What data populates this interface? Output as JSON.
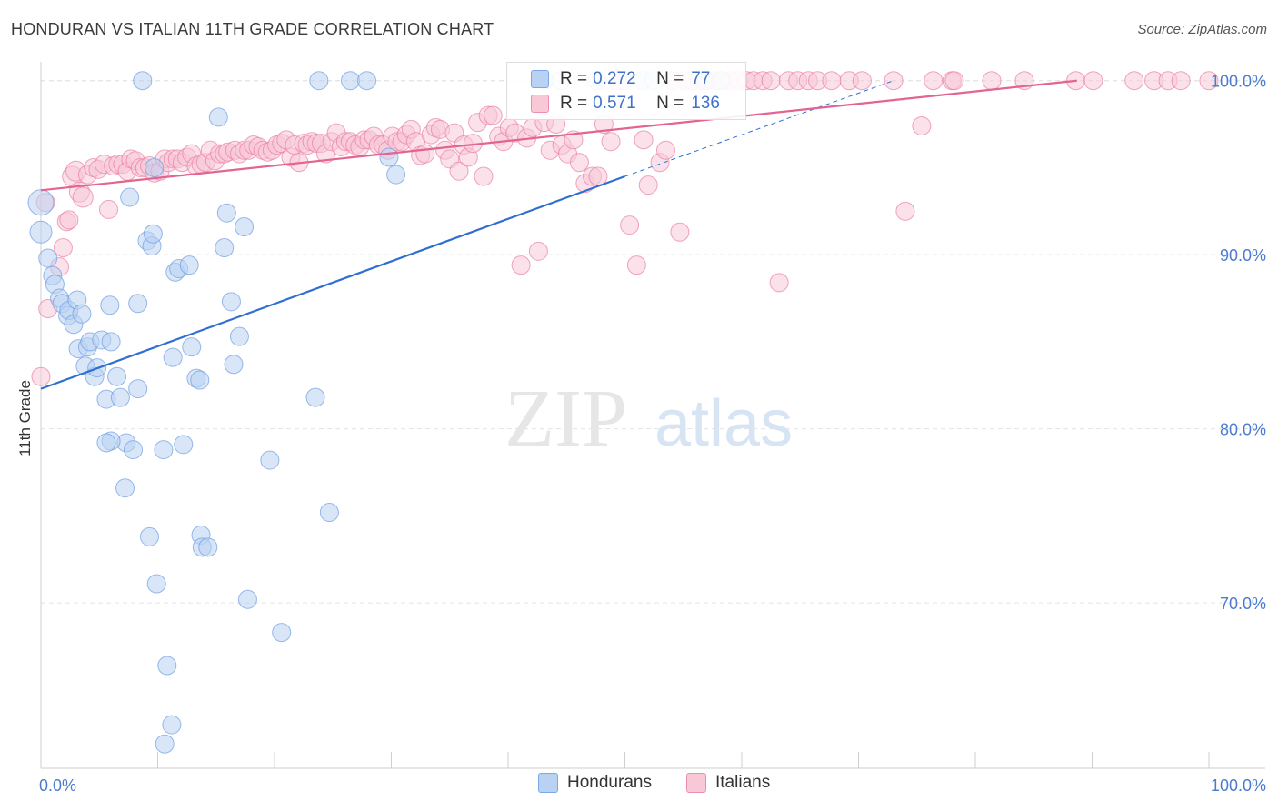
{
  "title": "HONDURAN VS ITALIAN 11TH GRADE CORRELATION CHART",
  "source": "Source: ZipAtlas.com",
  "watermark": {
    "zip": "ZIP",
    "atlas": "atlas"
  },
  "legend": {
    "rows": [
      {
        "r_label": "R = ",
        "r_value": "0.272",
        "n_label": "N = ",
        "n_value": "77",
        "color": "#9ec0f0"
      },
      {
        "r_label": "R = ",
        "r_value": "0.571",
        "n_label": "N = ",
        "n_value": "136",
        "color": "#f7b6ca"
      }
    ]
  },
  "bottom_legend": [
    {
      "label": "Hondurans",
      "color": "#9ec0f0"
    },
    {
      "label": "Italians",
      "color": "#f7b6ca"
    }
  ],
  "chart_data": {
    "type": "scatter",
    "title": "HONDURAN VS ITALIAN 11TH GRADE CORRELATION CHART",
    "xlabel": "",
    "ylabel": "11th Grade",
    "xlim": [
      0,
      100
    ],
    "ylim": [
      60.5,
      101.5
    ],
    "x_tick_labels": [
      "0.0%",
      "100.0%"
    ],
    "y_ticks": [
      70,
      80,
      90,
      100
    ],
    "y_tick_labels": [
      "70.0%",
      "80.0%",
      "90.0%",
      "100.0%"
    ],
    "grid": true,
    "legend_position": "top-center",
    "series": [
      {
        "name": "Hondurans",
        "color": "#6d9de3",
        "fill": "#b9d1f3",
        "trend": {
          "x1": 0,
          "y1": 82.3,
          "x2": 50,
          "y2": 94.5,
          "dash_to_x": 73,
          "dash_to_y": 100
        },
        "points": [
          [
            0,
            93
          ],
          [
            0,
            91.3
          ],
          [
            0.6,
            89.8
          ],
          [
            1,
            88.8
          ],
          [
            1.2,
            88.3
          ],
          [
            1.6,
            87.5
          ],
          [
            1.8,
            87.2
          ],
          [
            2.3,
            86.5
          ],
          [
            2.4,
            86.8
          ],
          [
            2.8,
            86
          ],
          [
            3.1,
            87.4
          ],
          [
            3.2,
            84.6
          ],
          [
            3.5,
            86.6
          ],
          [
            3.8,
            83.6
          ],
          [
            4,
            84.7
          ],
          [
            4.2,
            85
          ],
          [
            4.6,
            83
          ],
          [
            4.8,
            83.5
          ],
          [
            5.2,
            85.1
          ],
          [
            5.6,
            81.7
          ],
          [
            5.9,
            87.1
          ],
          [
            6,
            85
          ],
          [
            6.5,
            83
          ],
          [
            6.8,
            81.8
          ],
          [
            7.2,
            76.6
          ],
          [
            7.3,
            79.2
          ],
          [
            7.6,
            93.3
          ],
          [
            7.9,
            78.8
          ],
          [
            8.3,
            87.2
          ],
          [
            8.3,
            82.3
          ],
          [
            8.7,
            100
          ],
          [
            9.1,
            90.8
          ],
          [
            9.3,
            73.8
          ],
          [
            9.5,
            90.5
          ],
          [
            9.6,
            91.2
          ],
          [
            9.7,
            95
          ],
          [
            9.9,
            71.1
          ],
          [
            10.5,
            78.8
          ],
          [
            10.8,
            66.4
          ],
          [
            11.2,
            63
          ],
          [
            11.3,
            84.1
          ],
          [
            11.5,
            89
          ],
          [
            11.8,
            89.2
          ],
          [
            12.2,
            79.1
          ],
          [
            12.7,
            89.4
          ],
          [
            12.9,
            84.7
          ],
          [
            13.3,
            82.9
          ],
          [
            13.6,
            82.8
          ],
          [
            13.7,
            73.9
          ],
          [
            13.8,
            73.2
          ],
          [
            14.3,
            73.2
          ],
          [
            15.2,
            97.9
          ],
          [
            15.7,
            90.4
          ],
          [
            15.9,
            92.4
          ],
          [
            16.3,
            87.3
          ],
          [
            16.5,
            83.7
          ],
          [
            17,
            85.3
          ],
          [
            17.4,
            91.6
          ],
          [
            17.7,
            70.2
          ],
          [
            19.6,
            78.2
          ],
          [
            20.6,
            68.3
          ],
          [
            23.5,
            81.8
          ],
          [
            23.8,
            100
          ],
          [
            24.7,
            75.2
          ],
          [
            26.5,
            100
          ],
          [
            27.9,
            100
          ],
          [
            29.8,
            95.6
          ],
          [
            30.4,
            94.6
          ],
          [
            43.1,
            100
          ],
          [
            44.5,
            100
          ],
          [
            47.6,
            100
          ],
          [
            51.5,
            100
          ],
          [
            52.5,
            100
          ],
          [
            56.8,
            100
          ],
          [
            58.2,
            100
          ],
          [
            6,
            79.3
          ],
          [
            5.6,
            79.2
          ],
          [
            10.6,
            61.9
          ]
        ]
      },
      {
        "name": "Italians",
        "color": "#e97fa4",
        "fill": "#f8c8d7",
        "trend": {
          "x1": 0,
          "y1": 93.7,
          "x2": 88.7,
          "y2": 100
        },
        "points": [
          [
            0,
            83
          ],
          [
            0.4,
            93
          ],
          [
            0.6,
            86.9
          ],
          [
            1.6,
            89.3
          ],
          [
            1.9,
            90.4
          ],
          [
            2.2,
            91.9
          ],
          [
            2.4,
            92
          ],
          [
            2.7,
            94.5
          ],
          [
            3,
            94.8
          ],
          [
            3.3,
            93.6
          ],
          [
            3.6,
            93.3
          ],
          [
            4,
            94.6
          ],
          [
            4.5,
            95
          ],
          [
            4.9,
            94.9
          ],
          [
            5.4,
            95.2
          ],
          [
            5.8,
            92.6
          ],
          [
            6.2,
            95.1
          ],
          [
            6.6,
            95.2
          ],
          [
            7,
            95.2
          ],
          [
            7.4,
            94.8
          ],
          [
            7.7,
            95.5
          ],
          [
            8.1,
            95.4
          ],
          [
            8.5,
            95
          ],
          [
            8.9,
            95
          ],
          [
            9.3,
            95.1
          ],
          [
            9.7,
            94.7
          ],
          [
            10.2,
            94.8
          ],
          [
            10.6,
            95.5
          ],
          [
            10.9,
            95.3
          ],
          [
            11.3,
            95.5
          ],
          [
            11.7,
            95.5
          ],
          [
            12.1,
            95.3
          ],
          [
            12.5,
            95.6
          ],
          [
            12.9,
            95.8
          ],
          [
            13.3,
            95.1
          ],
          [
            13.7,
            95.2
          ],
          [
            14.1,
            95.3
          ],
          [
            14.5,
            96
          ],
          [
            14.9,
            95.4
          ],
          [
            15.3,
            95.8
          ],
          [
            15.7,
            95.8
          ],
          [
            16,
            95.9
          ],
          [
            16.6,
            96
          ],
          [
            17,
            95.8
          ],
          [
            17.4,
            96
          ],
          [
            17.8,
            96
          ],
          [
            18.2,
            96.3
          ],
          [
            18.6,
            96.2
          ],
          [
            19,
            96
          ],
          [
            19.4,
            95.9
          ],
          [
            19.8,
            96
          ],
          [
            20.2,
            96.3
          ],
          [
            20.6,
            96.4
          ],
          [
            21,
            96.6
          ],
          [
            21.4,
            95.6
          ],
          [
            21.7,
            96.3
          ],
          [
            22.1,
            95.3
          ],
          [
            22.5,
            96.4
          ],
          [
            22.8,
            96.3
          ],
          [
            23.2,
            96.5
          ],
          [
            23.6,
            96.4
          ],
          [
            24,
            96.4
          ],
          [
            24.4,
            95.8
          ],
          [
            24.9,
            96.5
          ],
          [
            25.3,
            97
          ],
          [
            25.7,
            96.2
          ],
          [
            26.1,
            96.5
          ],
          [
            26.5,
            96.5
          ],
          [
            26.9,
            96.3
          ],
          [
            27.3,
            96.2
          ],
          [
            27.7,
            96.6
          ],
          [
            28.1,
            96.6
          ],
          [
            28.5,
            96.8
          ],
          [
            28.9,
            96.3
          ],
          [
            29.3,
            96.3
          ],
          [
            29.7,
            96
          ],
          [
            30.1,
            96.8
          ],
          [
            30.5,
            96.5
          ],
          [
            30.9,
            96.5
          ],
          [
            31.3,
            96.9
          ],
          [
            31.7,
            97.2
          ],
          [
            32.1,
            96.5
          ],
          [
            32.5,
            95.7
          ],
          [
            32.9,
            95.8
          ],
          [
            33.4,
            96.9
          ],
          [
            33.8,
            97.3
          ],
          [
            34.2,
            97.2
          ],
          [
            34.6,
            96
          ],
          [
            35,
            95.5
          ],
          [
            35.4,
            97
          ],
          [
            35.8,
            94.8
          ],
          [
            36.2,
            96.3
          ],
          [
            36.6,
            95.6
          ],
          [
            37,
            96.4
          ],
          [
            37.4,
            97.6
          ],
          [
            37.9,
            94.5
          ],
          [
            38.3,
            98
          ],
          [
            38.7,
            98
          ],
          [
            39.2,
            96.8
          ],
          [
            39.6,
            96.5
          ],
          [
            40.1,
            97.3
          ],
          [
            40.6,
            97
          ],
          [
            41.1,
            89.4
          ],
          [
            41.6,
            96.7
          ],
          [
            42.1,
            97.3
          ],
          [
            42.6,
            90.2
          ],
          [
            43.1,
            97.6
          ],
          [
            43.6,
            96
          ],
          [
            44.1,
            97.5
          ],
          [
            44.6,
            96.3
          ],
          [
            45.1,
            95.8
          ],
          [
            45.6,
            96.6
          ],
          [
            46.1,
            95.3
          ],
          [
            46.6,
            94.1
          ],
          [
            47.2,
            94.5
          ],
          [
            47.7,
            94.5
          ],
          [
            48.2,
            97.5
          ],
          [
            48.8,
            96.5
          ],
          [
            49.3,
            100
          ],
          [
            49.9,
            100
          ],
          [
            50.4,
            91.7
          ],
          [
            51,
            89.4
          ],
          [
            51.6,
            96.6
          ],
          [
            52,
            94
          ],
          [
            53,
            95.3
          ],
          [
            53.5,
            96
          ],
          [
            54.1,
            100
          ],
          [
            54.7,
            91.3
          ],
          [
            55.2,
            100
          ],
          [
            55.8,
            100
          ],
          [
            56.4,
            100
          ],
          [
            57,
            100
          ],
          [
            57.7,
            100
          ],
          [
            58.3,
            100
          ],
          [
            59,
            100
          ],
          [
            59.7,
            100
          ],
          [
            60.4,
            100
          ],
          [
            61,
            100
          ],
          [
            61.8,
            100
          ],
          [
            62.5,
            100
          ],
          [
            63.2,
            88.4
          ],
          [
            64,
            100
          ],
          [
            64.8,
            100
          ],
          [
            65.7,
            100
          ],
          [
            66.5,
            100
          ],
          [
            67.7,
            100
          ],
          [
            69.2,
            100
          ],
          [
            70.3,
            100
          ],
          [
            73,
            100
          ],
          [
            74,
            92.5
          ],
          [
            75.4,
            97.4
          ],
          [
            76.4,
            100
          ],
          [
            78,
            100
          ],
          [
            78.2,
            100
          ],
          [
            81.4,
            100
          ],
          [
            84.2,
            100
          ],
          [
            88.6,
            100
          ],
          [
            90.1,
            100
          ],
          [
            93.6,
            100
          ],
          [
            95.3,
            100
          ],
          [
            96.5,
            100
          ],
          [
            97.6,
            100
          ],
          [
            100,
            100
          ]
        ]
      }
    ]
  }
}
